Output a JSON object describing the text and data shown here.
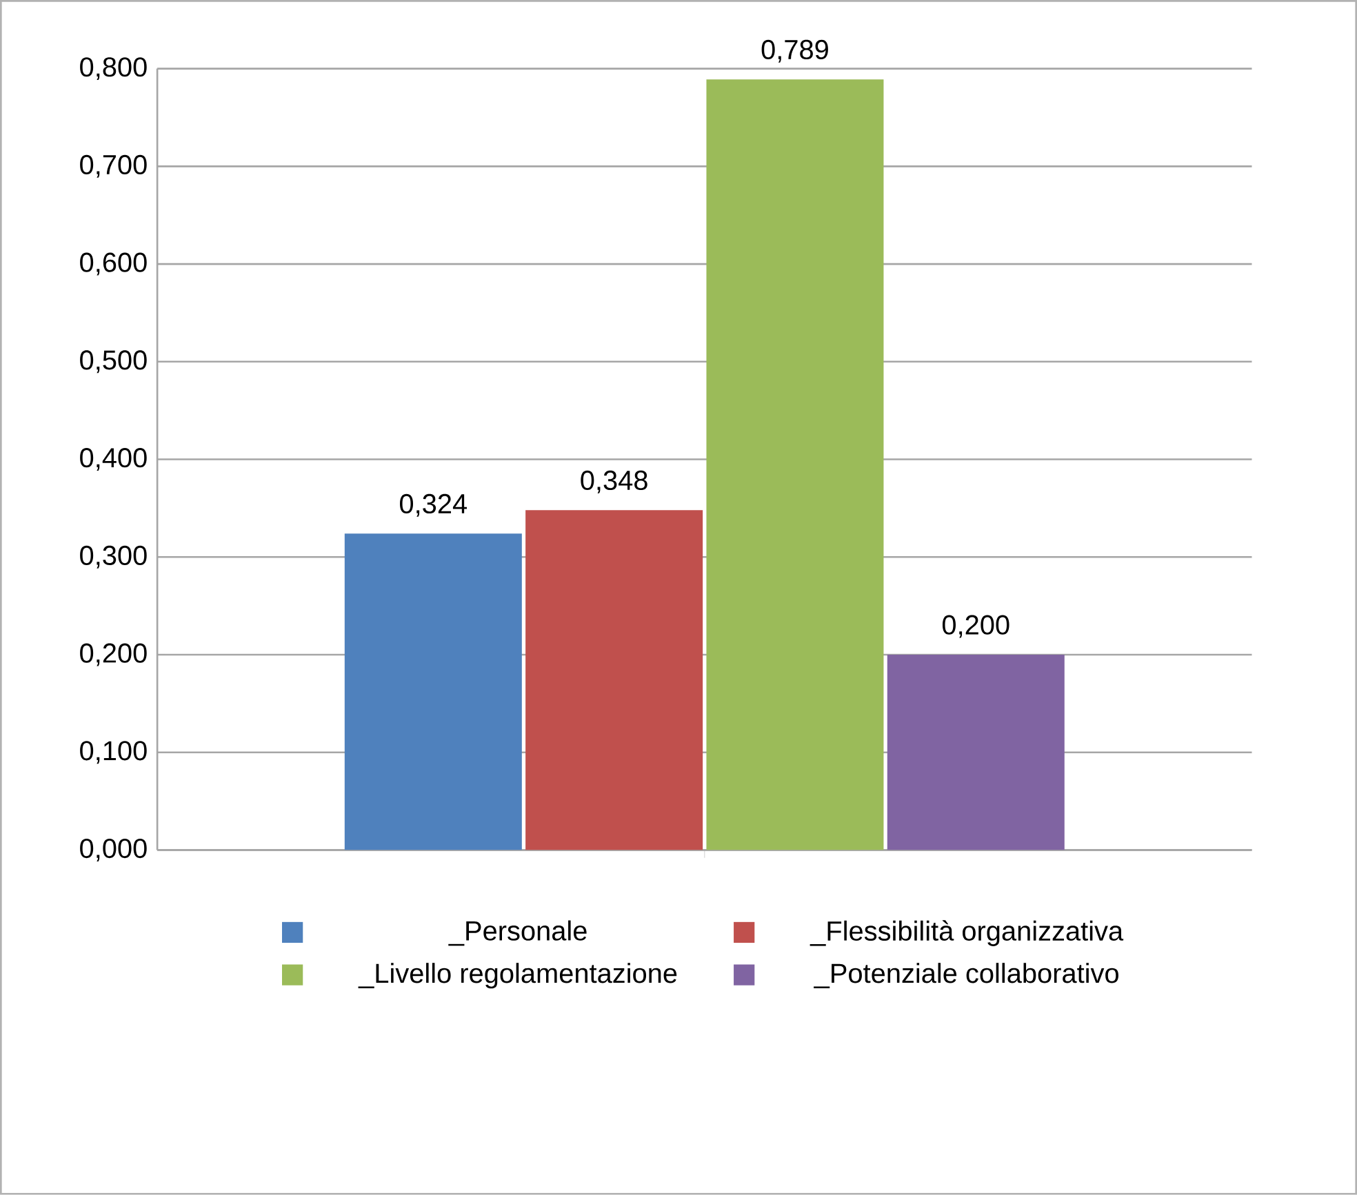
{
  "chart_data": {
    "type": "bar",
    "categories": [
      null
    ],
    "series": [
      {
        "name": "_Personale",
        "color": "#4f81bd",
        "values": [
          0.324
        ],
        "value_labels": [
          "0,324"
        ]
      },
      {
        "name": "_Flessibilità organizzativa",
        "color": "#c0504d",
        "values": [
          0.348
        ],
        "value_labels": [
          "0,348"
        ]
      },
      {
        "name": "_Livello regolamentazione",
        "color": "#9bbb59",
        "values": [
          0.789
        ],
        "value_labels": [
          "0,789"
        ]
      },
      {
        "name": "_Potenziale collaborativo",
        "color": "#8064a2",
        "values": [
          0.2
        ],
        "value_labels": [
          "0,200"
        ]
      }
    ],
    "ylim": [
      0,
      0.8
    ],
    "yticks": [
      {
        "value": 0,
        "label": "0,000"
      },
      {
        "value": 0.1,
        "label": "0,100"
      },
      {
        "value": 0.2,
        "label": "0,200"
      },
      {
        "value": 0.3,
        "label": "0,300"
      },
      {
        "value": 0.4,
        "label": "0,400"
      },
      {
        "value": 0.5,
        "label": "0,500"
      },
      {
        "value": 0.6,
        "label": "0,600"
      },
      {
        "value": 0.7,
        "label": "0,700"
      },
      {
        "value": 0.8,
        "label": "0,800"
      }
    ],
    "grid": "y",
    "legend": "bottom"
  }
}
